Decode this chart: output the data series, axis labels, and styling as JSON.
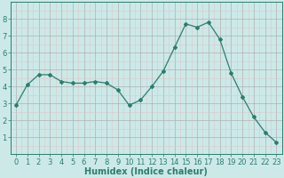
{
  "x": [
    0,
    1,
    2,
    3,
    4,
    5,
    6,
    7,
    8,
    9,
    10,
    11,
    12,
    13,
    14,
    15,
    16,
    17,
    18,
    19,
    20,
    21,
    22,
    23
  ],
  "y": [
    2.9,
    4.1,
    4.7,
    4.7,
    4.3,
    4.2,
    4.2,
    4.3,
    4.2,
    3.8,
    2.9,
    3.2,
    4.0,
    4.9,
    6.3,
    7.7,
    7.5,
    7.8,
    6.8,
    4.8,
    3.4,
    2.2,
    1.3,
    0.7
  ],
  "line_color": "#2d7d6f",
  "marker": "D",
  "marker_size": 2.0,
  "bg_color": "#cce9e8",
  "grid_major_color": "#b0b0b0",
  "grid_minor_color": "#dbc8c8",
  "xlabel": "Humidex (Indice chaleur)",
  "xlim": [
    -0.5,
    23.5
  ],
  "ylim": [
    0,
    9
  ],
  "yticks": [
    1,
    2,
    3,
    4,
    5,
    6,
    7,
    8
  ],
  "xticks": [
    0,
    1,
    2,
    3,
    4,
    5,
    6,
    7,
    8,
    9,
    10,
    11,
    12,
    13,
    14,
    15,
    16,
    17,
    18,
    19,
    20,
    21,
    22,
    23
  ],
  "axis_color": "#2d7d6f",
  "label_fontsize": 7.0,
  "tick_fontsize": 6.0
}
